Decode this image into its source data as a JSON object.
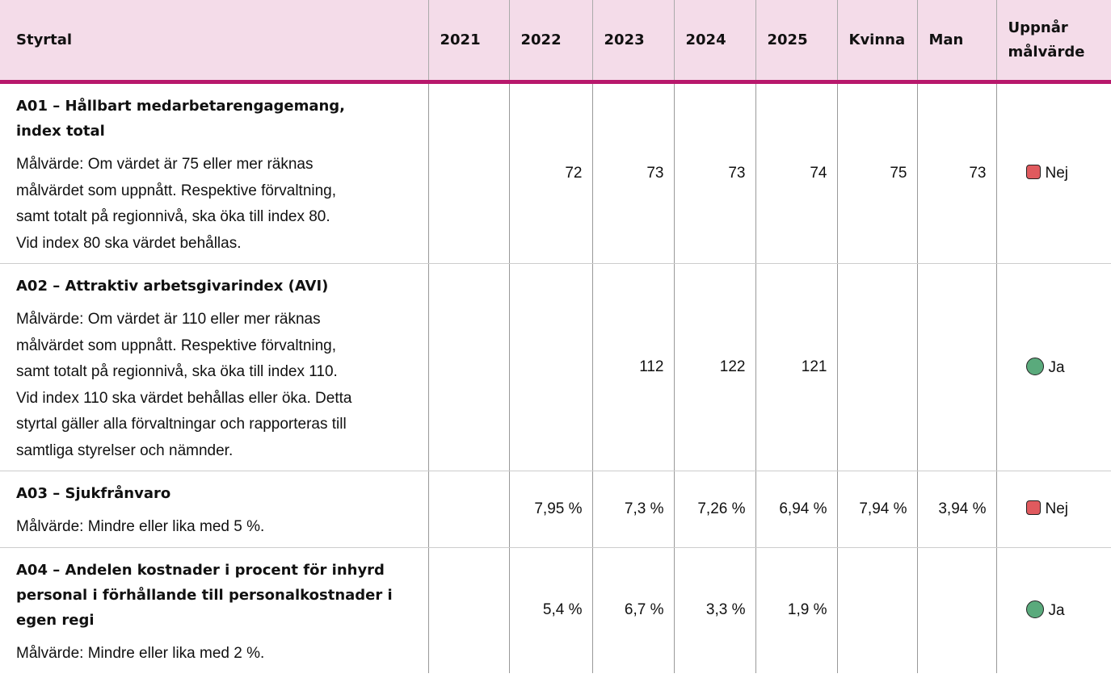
{
  "table": {
    "header": [
      "Styrtal",
      "2021",
      "2022",
      "2023",
      "2024",
      "2025",
      "Kvinna",
      "Man",
      "Uppnår målvärde"
    ],
    "rows": [
      {
        "title": [
          "A01 – Hållbart medarbetarengagemang,",
          "index total"
        ],
        "description": [
          "Målvärde: Om värdet är 75 eller mer räknas",
          "målvärdet som uppnått. Respektive förvaltning,",
          "samt totalt på regionnivå, ska öka till index 80.",
          "Vid index 80 ska värdet behållas."
        ],
        "values": [
          null,
          72,
          73,
          73,
          74,
          75,
          73
        ],
        "status": "Nej",
        "marker": {
          "shape": "square",
          "color": "#e05a5e"
        }
      },
      {
        "title": [
          "A02 – Attraktiv arbetsgivarindex (AVI)"
        ],
        "description": [
          "Målvärde: Om värdet är 110 eller mer räknas",
          "målvärdet som uppnått. Respektive förvaltning,",
          "samt totalt på regionnivå, ska öka till index 110.",
          "Vid index 110 ska värdet behållas eller öka. Detta",
          "styrtal gäller alla förvaltningar och rapporteras till",
          "samtliga styrelser och nämnder."
        ],
        "values": [
          null,
          null,
          112,
          122,
          121,
          null,
          null
        ],
        "status": "Ja",
        "marker": {
          "shape": "circle",
          "color": "#5aaa7c"
        }
      },
      {
        "title": [
          "A03 – Sjukfrånvaro"
        ],
        "description": [
          "Målvärde: Mindre eller lika med 5 %."
        ],
        "values": [
          null,
          "7,95 %",
          "7,3 %",
          "7,26 %",
          "6,94 %",
          "7,94 %",
          "3,94 %"
        ],
        "status": "Nej",
        "marker": {
          "shape": "square",
          "color": "#e05a5e"
        }
      },
      {
        "title": [
          "A04 – Andelen kostnader i procent för inhyrd",
          "personal i förhållande till personalkostnader i",
          "egen regi"
        ],
        "description": [
          "Målvärde: Mindre eller lika med 2 %."
        ],
        "values": [
          null,
          "5,4 %",
          "6,7 %",
          "3,3 %",
          "1,9 %",
          null,
          null
        ],
        "status": "Ja",
        "marker": {
          "shape": "circle",
          "color": "#5aaa7c"
        }
      }
    ]
  }
}
